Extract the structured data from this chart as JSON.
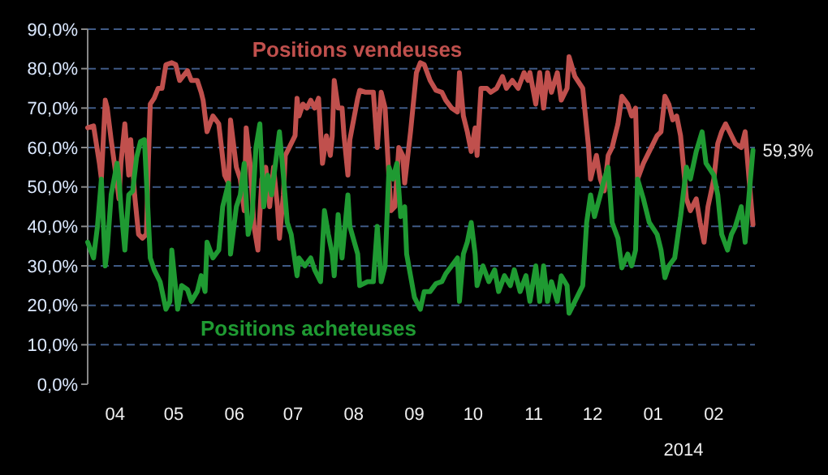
{
  "chart_data": {
    "type": "line",
    "xlabel": "2014",
    "legend": false,
    "grid": "y",
    "line_style": "solid",
    "marker": "none",
    "xlim": [
      "2013-03-18",
      "2014-02-22"
    ],
    "xticks": [
      {
        "value": "2013-04-01",
        "label": "04"
      },
      {
        "value": "2013-05-01",
        "label": "05"
      },
      {
        "value": "2013-06-01",
        "label": "06"
      },
      {
        "value": "2013-07-01",
        "label": "07"
      },
      {
        "value": "2013-08-01",
        "label": "08"
      },
      {
        "value": "2013-09-01",
        "label": "09"
      },
      {
        "value": "2013-10-01",
        "label": "10"
      },
      {
        "value": "2013-11-01",
        "label": "11"
      },
      {
        "value": "2013-12-01",
        "label": "12"
      },
      {
        "value": "2014-01-01",
        "label": "01"
      },
      {
        "value": "2014-02-01",
        "label": "02"
      }
    ],
    "ylim": [
      0,
      90
    ],
    "yticks": [
      {
        "value": 0,
        "label": "0,0%"
      },
      {
        "value": 10,
        "label": "10,0%"
      },
      {
        "value": 20,
        "label": "20,0%"
      },
      {
        "value": 30,
        "label": "30,0%"
      },
      {
        "value": 40,
        "label": "40,0%"
      },
      {
        "value": 50,
        "label": "50,0%"
      },
      {
        "value": 60,
        "label": "60,0%"
      },
      {
        "value": 70,
        "label": "70,0%"
      },
      {
        "value": 80,
        "label": "80,0%"
      },
      {
        "value": 90,
        "label": "90,0%"
      }
    ],
    "annotations": [
      {
        "text": "59,3%",
        "x": "2014-02-21",
        "y": 59.3
      }
    ],
    "series": [
      {
        "name": "Positions vendeuses",
        "color": "#c0504d",
        "x": [
          "2013-03-18",
          "2013-03-21",
          "2013-03-24",
          "2013-03-25",
          "2013-03-27",
          "2013-03-28",
          "2013-03-30",
          "2013-04-02",
          "2013-04-03",
          "2013-04-04",
          "2013-04-06",
          "2013-04-08",
          "2013-04-09",
          "2013-04-11",
          "2013-04-13",
          "2013-04-15",
          "2013-04-17",
          "2013-04-18",
          "2013-04-19",
          "2013-04-21",
          "2013-04-23",
          "2013-04-25",
          "2013-04-27",
          "2013-04-30",
          "2013-05-02",
          "2013-05-04",
          "2013-05-08",
          "2013-05-10",
          "2013-05-13",
          "2013-05-15",
          "2013-05-16",
          "2013-05-18",
          "2013-05-21",
          "2013-05-24",
          "2013-05-27",
          "2013-05-29",
          "2013-05-30",
          "2013-06-02",
          "2013-06-04",
          "2013-06-06",
          "2013-06-07",
          "2013-06-09",
          "2013-06-11",
          "2013-06-13",
          "2013-06-15",
          "2013-06-17",
          "2013-06-19",
          "2013-06-21",
          "2013-06-23",
          "2013-06-24",
          "2013-06-26",
          "2013-06-27",
          "2013-06-30",
          "2013-07-02",
          "2013-07-03",
          "2013-07-04",
          "2013-07-06",
          "2013-07-08",
          "2013-07-10",
          "2013-07-12",
          "2013-07-14",
          "2013-07-16",
          "2013-07-18",
          "2013-07-20",
          "2013-07-21",
          "2013-07-22",
          "2013-07-24",
          "2013-07-26",
          "2013-07-27",
          "2013-07-29",
          "2013-07-30",
          "2013-08-03",
          "2013-08-04",
          "2013-08-07",
          "2013-08-11",
          "2013-08-13",
          "2013-08-15",
          "2013-08-17",
          "2013-08-19",
          "2013-08-20",
          "2013-08-22",
          "2013-08-24",
          "2013-08-26",
          "2013-08-27",
          "2013-08-30",
          "2013-09-02",
          "2013-09-04",
          "2013-09-06",
          "2013-09-09",
          "2013-09-12",
          "2013-09-15",
          "2013-09-17",
          "2013-09-20",
          "2013-09-23",
          "2013-09-24",
          "2013-09-26",
          "2013-09-28",
          "2013-09-30",
          "2013-10-02",
          "2013-10-03",
          "2013-10-05",
          "2013-10-08",
          "2013-10-10",
          "2013-10-13",
          "2013-10-16",
          "2013-10-18",
          "2013-10-21",
          "2013-10-24",
          "2013-10-27",
          "2013-10-29",
          "2013-10-30",
          "2013-11-02",
          "2013-11-04",
          "2013-11-06",
          "2013-11-08",
          "2013-11-10",
          "2013-11-13",
          "2013-11-15",
          "2013-11-18",
          "2013-11-19",
          "2013-11-22",
          "2013-11-26",
          "2013-11-29",
          "2013-11-30",
          "2013-12-03",
          "2013-12-05",
          "2013-12-07",
          "2013-12-09",
          "2013-12-11",
          "2013-12-14",
          "2013-12-16",
          "2013-12-19",
          "2013-12-21",
          "2013-12-23",
          "2013-12-24",
          "2013-12-27",
          "2013-12-30",
          "2014-01-03",
          "2014-01-05",
          "2014-01-07",
          "2014-01-09",
          "2014-01-11",
          "2014-01-13",
          "2014-01-15",
          "2014-01-18",
          "2014-01-20",
          "2014-01-23",
          "2014-01-25",
          "2014-01-27",
          "2014-01-29",
          "2014-02-01",
          "2014-02-03",
          "2014-02-05",
          "2014-02-07",
          "2014-02-09",
          "2014-02-12",
          "2014-02-15",
          "2014-02-17",
          "2014-02-19",
          "2014-02-21"
        ],
        "values": [
          65,
          65.5,
          56,
          52,
          72,
          70,
          62,
          51,
          47,
          56,
          66,
          53,
          62,
          48,
          38,
          37,
          38,
          56,
          71,
          72.5,
          75,
          75,
          81,
          81.5,
          81,
          77,
          79.5,
          77,
          77,
          74,
          72,
          64,
          68,
          66,
          53,
          51,
          67,
          55,
          52,
          44,
          65,
          56,
          40,
          34,
          52,
          55,
          45,
          55,
          45,
          37,
          48,
          58,
          61,
          63,
          72.5,
          68,
          71,
          70,
          72,
          70,
          72.5,
          56,
          63,
          58,
          63,
          77,
          70,
          70,
          63,
          53,
          62,
          72.5,
          74.5,
          74,
          74,
          60,
          74,
          70,
          52,
          44,
          45,
          60,
          58,
          51,
          64,
          79,
          81.5,
          81,
          77,
          74.5,
          74,
          72,
          70,
          69,
          79,
          68,
          64,
          59,
          65,
          58,
          75,
          75,
          74,
          75,
          78,
          75,
          77,
          75,
          79,
          77,
          79,
          71,
          79,
          70,
          79,
          74,
          79,
          72,
          75,
          83,
          78,
          75,
          60,
          52,
          58,
          52,
          49,
          58,
          60,
          66,
          73,
          71,
          68,
          70,
          52,
          56,
          59,
          63,
          64,
          73,
          71,
          67,
          68,
          63,
          47,
          44,
          47,
          41,
          36,
          45,
          52,
          61,
          64,
          66,
          64,
          61,
          60,
          64,
          52,
          40.5
        ]
      },
      {
        "name": "Positions acheteuses",
        "color": "#1f9a32",
        "x": [
          "2013-03-18",
          "2013-03-21",
          "2013-03-23",
          "2013-03-25",
          "2013-03-27",
          "2013-03-28",
          "2013-03-30",
          "2013-04-02",
          "2013-04-03",
          "2013-04-04",
          "2013-04-06",
          "2013-04-08",
          "2013-04-10",
          "2013-04-12",
          "2013-04-14",
          "2013-04-16",
          "2013-04-17",
          "2013-04-19",
          "2013-04-21",
          "2013-04-24",
          "2013-04-27",
          "2013-04-29",
          "2013-04-30",
          "2013-05-03",
          "2013-05-05",
          "2013-05-08",
          "2013-05-10",
          "2013-05-13",
          "2013-05-15",
          "2013-05-17",
          "2013-05-18",
          "2013-05-21",
          "2013-05-24",
          "2013-05-26",
          "2013-05-29",
          "2013-05-30",
          "2013-06-02",
          "2013-06-04",
          "2013-06-06",
          "2013-06-08",
          "2013-06-10",
          "2013-06-12",
          "2013-06-14",
          "2013-06-16",
          "2013-06-18",
          "2013-06-20",
          "2013-06-22",
          "2013-06-24",
          "2013-06-26",
          "2013-06-28",
          "2013-06-30",
          "2013-07-03",
          "2013-07-04",
          "2013-07-07",
          "2013-07-10",
          "2013-07-12",
          "2013-07-15",
          "2013-07-17",
          "2013-07-19",
          "2013-07-21",
          "2013-07-22",
          "2013-07-24",
          "2013-07-26",
          "2013-07-29",
          "2013-07-30",
          "2013-08-03",
          "2013-08-04",
          "2013-08-08",
          "2013-08-11",
          "2013-08-13",
          "2013-08-15",
          "2013-08-17",
          "2013-08-19",
          "2013-08-21",
          "2013-08-23",
          "2013-08-25",
          "2013-08-27",
          "2013-08-28",
          "2013-09-01",
          "2013-09-04",
          "2013-09-06",
          "2013-09-09",
          "2013-09-12",
          "2013-09-15",
          "2013-09-17",
          "2013-09-20",
          "2013-09-23",
          "2013-09-24",
          "2013-09-26",
          "2013-09-28",
          "2013-09-30",
          "2013-10-02",
          "2013-10-03",
          "2013-10-06",
          "2013-10-09",
          "2013-10-12",
          "2013-10-14",
          "2013-10-17",
          "2013-10-20",
          "2013-10-22",
          "2013-10-25",
          "2013-10-28",
          "2013-10-30",
          "2013-11-02",
          "2013-11-04",
          "2013-11-06",
          "2013-11-08",
          "2013-11-10",
          "2013-11-13",
          "2013-11-15",
          "2013-11-18",
          "2013-11-19",
          "2013-11-22",
          "2013-11-26",
          "2013-11-28",
          "2013-11-30",
          "2013-12-02",
          "2013-12-05",
          "2013-12-07",
          "2013-12-09",
          "2013-12-11",
          "2013-12-14",
          "2013-12-16",
          "2013-12-19",
          "2013-12-21",
          "2013-12-23",
          "2013-12-24",
          "2013-12-27",
          "2013-12-30",
          "2014-01-03",
          "2014-01-05",
          "2014-01-07",
          "2014-01-09",
          "2014-01-12",
          "2014-01-15",
          "2014-01-18",
          "2014-01-20",
          "2014-01-23",
          "2014-01-26",
          "2014-01-28",
          "2014-02-01",
          "2014-02-03",
          "2014-02-05",
          "2014-02-08",
          "2014-02-10",
          "2014-02-12",
          "2014-02-15",
          "2014-02-17",
          "2014-02-19",
          "2014-02-21"
        ],
        "values": [
          36,
          32,
          40,
          52,
          30,
          34,
          48,
          56,
          52,
          45,
          34,
          48,
          49,
          57.5,
          61.5,
          62,
          52,
          32,
          29,
          26,
          19,
          21,
          34,
          19,
          25,
          24,
          21,
          23.5,
          27.5,
          23.5,
          36,
          32,
          34,
          45,
          51,
          33,
          45,
          48,
          56,
          38,
          42.5,
          60,
          66,
          45,
          53,
          48,
          56,
          64,
          53,
          41,
          38,
          27.5,
          32,
          30,
          32,
          29,
          26,
          44,
          38,
          33,
          27.5,
          43,
          32,
          48,
          40,
          33,
          25,
          26,
          26,
          40,
          26,
          30,
          55,
          52,
          56,
          42.5,
          45,
          33,
          22,
          19,
          23.5,
          23.5,
          25.5,
          26,
          28,
          30,
          32,
          21,
          33,
          36,
          41,
          33,
          25,
          30,
          26,
          29,
          23.5,
          27.5,
          25,
          29,
          23.5,
          27.5,
          21,
          30,
          21,
          30,
          21,
          26,
          21,
          27.5,
          25,
          18,
          21,
          25,
          41,
          48,
          42.5,
          48,
          52,
          55,
          41,
          37,
          29.5,
          33,
          30,
          34,
          52,
          47,
          41,
          38,
          34,
          27,
          30,
          32,
          42.5,
          55,
          52,
          59,
          64,
          56,
          53,
          48,
          38,
          34,
          38,
          40,
          45,
          36,
          48,
          59.3
        ]
      }
    ]
  }
}
